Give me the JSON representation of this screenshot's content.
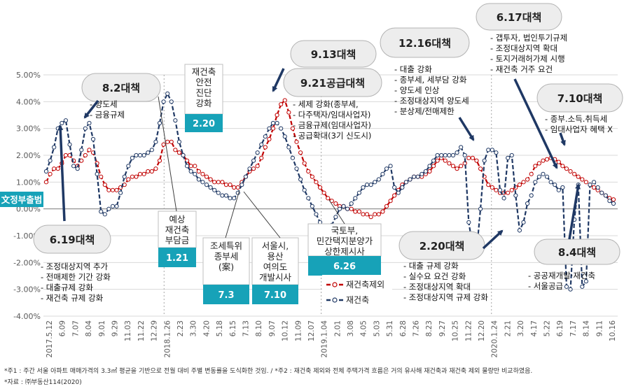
{
  "chart_data": {
    "type": "line",
    "ylim": [
      -4.0,
      5.0
    ],
    "yticks": [
      "5.00%",
      "4.00%",
      "3.00%",
      "2.00%",
      "1.00%",
      "0.00%",
      "-1.00%",
      "-2.00%",
      "-3.00%",
      "-4.00%"
    ],
    "ytick_values": [
      5,
      4,
      3,
      2,
      1,
      0,
      -1,
      -2,
      -3,
      -4
    ],
    "xticks": [
      "2017.5.12",
      "6.09",
      "7.07",
      "8.04",
      "9.01",
      "9.29",
      "11.03",
      "11.22",
      "12.29",
      "2018.1.26",
      "2.23",
      "3.30",
      "4.20",
      "5.18",
      "6.15",
      "7.13",
      "8.10",
      "9.07",
      "10.12",
      "11.09",
      "12.07",
      "2019.1.04",
      "2.01",
      "3.08",
      "4.05",
      "5.03",
      "5.31",
      "6.28",
      "7.26",
      "8.23",
      "9.27",
      "10.25",
      "11.22",
      "12.20",
      "2020.1.24",
      "2.21",
      "3.20",
      "4.17",
      "5.22",
      "6.19",
      "7.17",
      "8.14",
      "9.11",
      "10.16"
    ],
    "grid": true,
    "legend_position": "bottom-center",
    "series": [
      {
        "name": "재건축제외",
        "color": "#c00000",
        "values": [
          1.0,
          1.3,
          1.5,
          1.5,
          1.7,
          2.0,
          2.0,
          1.8,
          1.6,
          1.8,
          2.0,
          2.2,
          2.1,
          1.7,
          1.2,
          0.9,
          0.7,
          0.7,
          0.7,
          0.8,
          0.9,
          1.1,
          1.2,
          1.2,
          1.3,
          1.3,
          1.4,
          1.4,
          1.5,
          1.8,
          2.4,
          2.5,
          2.5,
          2.2,
          2.1,
          2.0,
          1.8,
          1.6,
          1.6,
          1.4,
          1.3,
          1.2,
          1.1,
          1.0,
          1.0,
          1.0,
          0.9,
          0.9,
          0.8,
          0.8,
          1.0,
          1.2,
          1.4,
          1.5,
          1.6,
          1.9,
          2.3,
          2.6,
          3.0,
          3.5,
          3.9,
          4.05,
          3.6,
          3.0,
          2.5,
          2.1,
          1.7,
          1.4,
          1.2,
          1.0,
          0.8,
          0.6,
          0.4,
          0.3,
          0.2,
          0.1,
          0.1,
          0.0,
          0.0,
          -0.1,
          -0.1,
          -0.2,
          -0.2,
          -0.3,
          -0.2,
          -0.2,
          -0.1,
          0.1,
          0.3,
          0.5,
          0.7,
          0.9,
          1.0,
          1.1,
          1.2,
          1.2,
          1.2,
          1.3,
          1.4,
          1.6,
          1.8,
          1.9,
          1.8,
          1.7,
          1.6,
          1.5,
          1.6,
          1.7,
          1.9,
          1.9,
          1.8,
          1.5,
          1.2,
          0.9,
          0.8,
          0.7,
          0.6,
          0.6,
          0.6,
          0.7,
          0.8,
          0.9,
          1.0,
          1.1,
          1.3,
          1.6,
          1.7,
          1.8,
          1.85,
          1.9,
          1.85,
          1.75,
          1.6,
          1.5,
          1.4,
          1.3,
          1.2,
          1.1,
          1.0,
          0.9,
          0.8,
          0.7,
          0.6,
          0.5,
          0.4,
          0.35
        ]
      },
      {
        "name": "재건축",
        "color": "#1f3864",
        "values": [
          1.4,
          1.8,
          2.3,
          3.0,
          3.2,
          3.3,
          2.4,
          1.6,
          1.5,
          2.2,
          3.0,
          3.2,
          2.6,
          1.3,
          -0.1,
          -0.2,
          0.0,
          0.1,
          0.1,
          0.6,
          1.2,
          1.6,
          1.9,
          2.0,
          2.0,
          2.0,
          2.1,
          2.2,
          2.5,
          3.2,
          4.0,
          4.3,
          4.0,
          3.3,
          2.5,
          2.0,
          1.6,
          1.4,
          1.3,
          1.1,
          1.0,
          0.9,
          0.8,
          0.7,
          0.6,
          0.5,
          0.5,
          0.4,
          0.4,
          0.6,
          0.9,
          1.2,
          1.5,
          1.8,
          2.1,
          2.4,
          2.7,
          3.0,
          3.2,
          3.2,
          3.0,
          2.7,
          2.3,
          1.9,
          1.5,
          1.1,
          0.7,
          0.4,
          0.1,
          -0.2,
          -0.5,
          -0.8,
          -0.9,
          -0.6,
          -0.3,
          0.0,
          0.1,
          0.0,
          0.2,
          0.4,
          0.6,
          0.8,
          0.9,
          0.9,
          1.0,
          1.1,
          1.3,
          1.5,
          1.6,
          0.8,
          0.6,
          0.8,
          1.0,
          1.1,
          1.2,
          1.2,
          1.3,
          1.4,
          1.6,
          1.8,
          2.0,
          2.0,
          2.0,
          2.0,
          2.0,
          2.1,
          2.3,
          2.0,
          -0.5,
          -1.4,
          -1.6,
          0.0,
          1.8,
          2.2,
          2.2,
          2.1,
          0.7,
          0.4,
          1.9,
          2.0,
          0.5,
          -0.8,
          -0.5,
          0.2,
          0.5,
          1.0,
          1.2,
          1.3,
          1.2,
          1.0,
          0.9,
          0.7,
          0.8,
          -2.9,
          -3.0,
          -0.4,
          0.9,
          -2.9,
          -2.7,
          0.9,
          1.0,
          0.8,
          0.6,
          0.5,
          0.3,
          0.2
        ]
      }
    ],
    "annotations": {
      "callouts": [
        {
          "id": "c82",
          "label": "8.2대책",
          "items": [
            "양도세",
            "금융규제"
          ]
        },
        {
          "id": "c913",
          "label": "9.13대책",
          "items": []
        },
        {
          "id": "c921",
          "label": "9.21공급대책",
          "items": [
            "세제 강화(종부세,",
            "다주택자/임대사업자)",
            "금융규제(임대사업자)",
            "공급확대(3기 신도시)"
          ]
        },
        {
          "id": "c1216",
          "label": "12.16대책",
          "items": [
            "대출 강화",
            "종부세, 세부담 강화",
            "양도세 인상",
            "조정대상지역 양도세",
            "분상제/전매제한"
          ]
        },
        {
          "id": "c617",
          "label": "6.17대책",
          "items": [
            "갭투자, 법인투기규제",
            "조정대상지역 확대",
            "토지거래허가제 시행",
            "재건축 거주 요건"
          ]
        },
        {
          "id": "c710",
          "label": "7.10대책",
          "items": [
            "종부.소득.취득세",
            "임대사업자 혜택 X"
          ]
        },
        {
          "id": "c619",
          "label": "6.19대책",
          "items": [
            "조정대상지역 추가",
            "전매제한 기간 강화",
            "대출규제 강화",
            "재건축 규제 강화"
          ]
        },
        {
          "id": "c220",
          "label": "2.20대책",
          "items": [
            "대출 규제 강화",
            "실수요 요건 강화",
            "조정대상지역 확대",
            "조정대상지역 규제 강화"
          ]
        },
        {
          "id": "c84",
          "label": "8.4대책",
          "items": [
            "공공재개발·재건축",
            "서울공급"
          ]
        }
      ],
      "boxes": [
        {
          "id": "b220",
          "lines": [
            "재건축",
            "안전",
            "진단",
            "강화"
          ],
          "date": "2.20"
        },
        {
          "id": "b121",
          "lines": [
            "예상",
            "재건축",
            "부담금"
          ],
          "date": "1.21"
        },
        {
          "id": "b73",
          "lines": [
            "조세특위",
            "종부세",
            "(案)"
          ],
          "date": "7.3"
        },
        {
          "id": "b710",
          "lines": [
            "서울시,",
            "용산",
            "여의도",
            "개발시사"
          ],
          "date": "7.10"
        },
        {
          "id": "b626",
          "lines": [
            "국토부,",
            "민간택지분양가",
            "상한제시사"
          ],
          "date": "6.26"
        }
      ],
      "side_label": "文정부출범"
    },
    "footnotes": [
      "*주1 : 주간 서울 아파트 매매가격의 3.3㎡ 평균을 기반으로 전월 대비 주별 변동률을 도식화한 것임. / *주2 : 재건축 제외와 전체 주택가격 흐름은 거의 유사해 재건축과 재건축 제외 물량만 비교하였음.",
      "*자료 : ㈜부동산114(2020)"
    ]
  }
}
